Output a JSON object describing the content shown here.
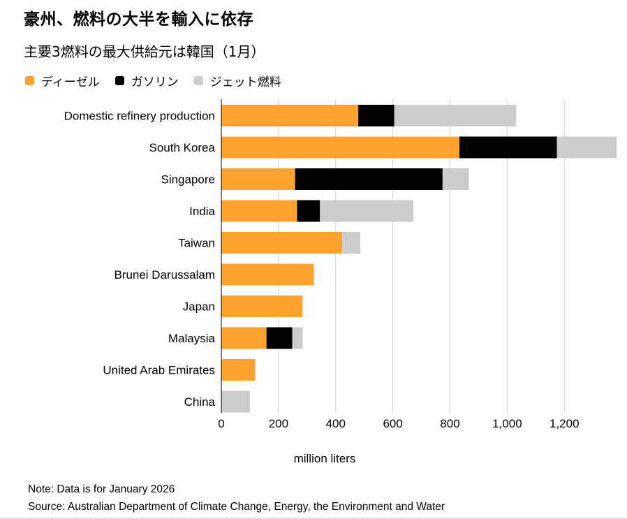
{
  "header": {
    "title": "豪州、燃料の大半を輸入に依存",
    "subtitle": "主要3燃料の最大供給元は韓国（1月）"
  },
  "footer": {
    "note": "Note: Data is for January 2026",
    "source": "Source: Australian Department of Climate Change, Energy, the Environment and Water"
  },
  "chart_data": {
    "type": "bar",
    "orientation": "horizontal",
    "stacked": true,
    "title": "豪州、燃料の大半を輸入に依存",
    "subtitle": "主要3燃料の最大供給元は韓国（1月）",
    "xlabel": "million liters",
    "ylabel": "",
    "xlim": [
      0,
      1380
    ],
    "xticks": [
      0,
      200,
      400,
      600,
      800,
      1000,
      1200
    ],
    "xtick_labels": [
      "0",
      "200",
      "400",
      "600",
      "800",
      "1,000",
      "1,200"
    ],
    "grid": "vertical",
    "legend_position": "top-left",
    "categories": [
      "Domestic refinery production",
      "South Korea",
      "Singapore",
      "India",
      "Taiwan",
      "Brunei Darussalam",
      "Japan",
      "Malaysia",
      "United Arab Emirates",
      "China"
    ],
    "series": [
      {
        "name": "ディーゼル",
        "color": "#ffa12e",
        "values": [
          479,
          833,
          258,
          265,
          423,
          324,
          284,
          158,
          118,
          0
        ]
      },
      {
        "name": "ガソリン",
        "color": "#000000",
        "values": [
          126,
          341,
          516,
          80,
          0,
          0,
          0,
          90,
          0,
          0
        ]
      },
      {
        "name": "ジェット燃料",
        "color": "#cccccc",
        "values": [
          426,
          209,
          92,
          327,
          63,
          0,
          0,
          37,
          0,
          100
        ]
      }
    ]
  }
}
